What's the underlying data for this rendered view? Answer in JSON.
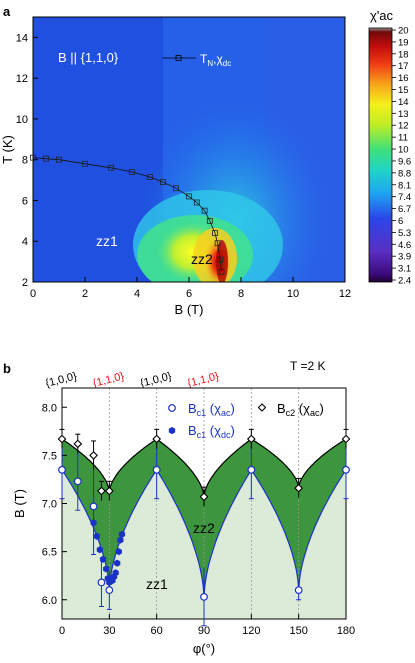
{
  "chart_data": [
    {
      "panel": "a",
      "type": "heatmap",
      "annotation": "B || {1,1,0}",
      "xlabel": "B (T)",
      "ylabel": "T (K)",
      "xlim": [
        0,
        12
      ],
      "ylim": [
        2,
        15
      ],
      "xticks": [
        0,
        2,
        4,
        6,
        8,
        10,
        12
      ],
      "yticks": [
        2,
        4,
        6,
        8,
        10,
        12,
        14
      ],
      "region_labels": [
        "zz1",
        "zz2"
      ],
      "colorbar": {
        "label": "χ'ac",
        "ticks": [
          2.4,
          3.1,
          3.9,
          4.6,
          5.3,
          6.0,
          6.7,
          7.4,
          8.1,
          8.8,
          9.6,
          10,
          11,
          12,
          13,
          14,
          15,
          16,
          17,
          18,
          19,
          20
        ]
      },
      "series": [
        {
          "name": "T_N,χ_dc",
          "x": [
            0,
            0.5,
            1,
            2,
            3,
            3.8,
            4.5,
            5,
            5.5,
            6,
            6.3,
            6.6,
            6.8,
            7,
            7.1,
            7.2,
            7.25
          ],
          "y": [
            8.1,
            8.05,
            8.0,
            7.8,
            7.6,
            7.4,
            7.15,
            6.9,
            6.6,
            6.2,
            5.9,
            5.5,
            5.0,
            4.4,
            3.9,
            3.1,
            2.5
          ]
        }
      ]
    },
    {
      "panel": "b",
      "type": "scatter",
      "annotation": "T =2 K",
      "xlabel": "φ(°)",
      "ylabel": "B (T)",
      "xlim": [
        0,
        180
      ],
      "ylim": [
        5.8,
        8.2
      ],
      "xticks": [
        0,
        30,
        60,
        90,
        120,
        150,
        180
      ],
      "yticks": [
        6.0,
        6.5,
        7.0,
        7.5,
        8.0
      ],
      "direction_labels": [
        {
          "x": 0,
          "text": "{1,0,0}",
          "color": "#000000"
        },
        {
          "x": 30,
          "text": "{1,1,0}",
          "color": "#e8141b"
        },
        {
          "x": 60,
          "text": "{1,0,0}",
          "color": "#000000"
        },
        {
          "x": 90,
          "text": "{1,1,0}",
          "color": "#e8141b"
        }
      ],
      "region_labels": [
        "zz1",
        "zz2"
      ],
      "series": [
        {
          "name": "Bc1 (χac)",
          "x": [
            0,
            10,
            20,
            25,
            30,
            60,
            90,
            120,
            150,
            180
          ],
          "y": [
            7.35,
            7.23,
            6.97,
            6.18,
            6.1,
            7.35,
            6.03,
            7.35,
            6.1,
            7.35
          ],
          "err": [
            0.3,
            0.3,
            0.5,
            0.25,
            0.2,
            0.3,
            0.3,
            0.3,
            0.1,
            0.3
          ]
        },
        {
          "name": "Bc1 (χdc)",
          "x": [
            20,
            22,
            24,
            26,
            28,
            29,
            30,
            31,
            32,
            33,
            34,
            35,
            36,
            37,
            38
          ],
          "y": [
            6.8,
            6.66,
            6.52,
            6.42,
            6.32,
            6.22,
            6.18,
            6.2,
            6.2,
            6.24,
            6.28,
            6.38,
            6.5,
            6.62,
            6.68
          ]
        },
        {
          "name": "Bc2 (χac)",
          "x": [
            0,
            10,
            20,
            25,
            30,
            60,
            90,
            120,
            150,
            180
          ],
          "y": [
            7.67,
            7.62,
            7.5,
            7.13,
            7.13,
            7.67,
            7.07,
            7.67,
            7.16,
            7.67
          ],
          "err": [
            0.1,
            0.1,
            0.15,
            0.1,
            0.1,
            0.1,
            0.1,
            0.1,
            0.1,
            0.1
          ]
        }
      ]
    }
  ],
  "panel_letters": [
    "a",
    "b"
  ]
}
